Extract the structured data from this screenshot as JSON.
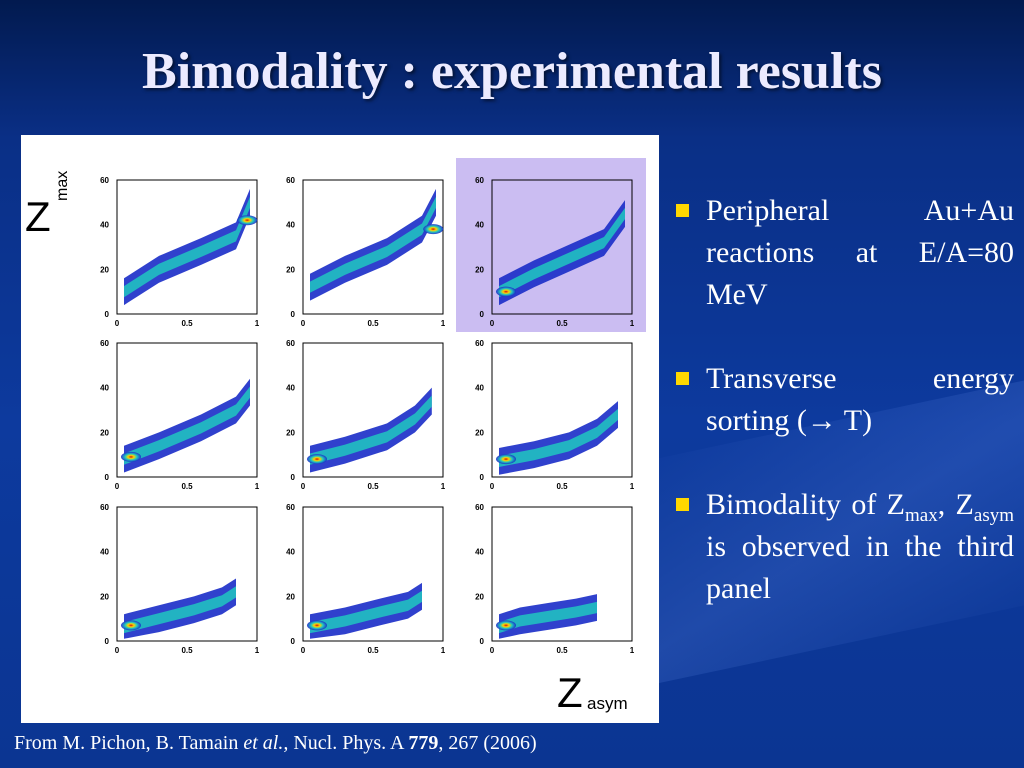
{
  "slide": {
    "title": "Bimodality : experimental results"
  },
  "figure": {
    "y_axis_symbol": "Z",
    "y_axis_subscript": "max",
    "x_axis_symbol": "Z",
    "x_axis_subscript": "asym",
    "y_ticks": [
      "0",
      "20",
      "40",
      "60"
    ],
    "x_ticks": [
      "0",
      "0.5",
      "1"
    ],
    "highlight_color": "#cbbdf2",
    "highlighted_panel": "row 1, column 3"
  },
  "chart_data": {
    "type": "heatmap",
    "description_grid": "3 x 3 grid of 2D density histograms (Zmax vs Zasym)",
    "xlim": [
      0,
      1
    ],
    "ylim": [
      0,
      60
    ],
    "panels": [
      {
        "row": 1,
        "col": 1,
        "blob": [
          [
            0.05,
            10
          ],
          [
            0.3,
            20
          ],
          [
            0.6,
            28
          ],
          [
            0.85,
            35
          ],
          [
            0.95,
            50
          ]
        ],
        "peak": [
          0.93,
          42
        ]
      },
      {
        "row": 1,
        "col": 2,
        "blob": [
          [
            0.05,
            12
          ],
          [
            0.3,
            20
          ],
          [
            0.6,
            28
          ],
          [
            0.85,
            38
          ],
          [
            0.95,
            50
          ]
        ],
        "peak": [
          0.93,
          38
        ]
      },
      {
        "row": 1,
        "col": 3,
        "blob": [
          [
            0.05,
            10
          ],
          [
            0.3,
            18
          ],
          [
            0.55,
            25
          ],
          [
            0.8,
            32
          ],
          [
            0.95,
            45
          ]
        ],
        "peak": [
          0.1,
          10
        ]
      },
      {
        "row": 2,
        "col": 1,
        "blob": [
          [
            0.05,
            8
          ],
          [
            0.3,
            14
          ],
          [
            0.6,
            22
          ],
          [
            0.85,
            30
          ],
          [
            0.95,
            38
          ]
        ],
        "peak": [
          0.1,
          9
        ]
      },
      {
        "row": 2,
        "col": 2,
        "blob": [
          [
            0.05,
            8
          ],
          [
            0.3,
            12
          ],
          [
            0.6,
            18
          ],
          [
            0.8,
            26
          ],
          [
            0.92,
            34
          ]
        ],
        "peak": [
          0.1,
          8
        ]
      },
      {
        "row": 2,
        "col": 3,
        "blob": [
          [
            0.05,
            7
          ],
          [
            0.3,
            10
          ],
          [
            0.55,
            14
          ],
          [
            0.75,
            20
          ],
          [
            0.9,
            28
          ]
        ],
        "peak": [
          0.1,
          8
        ]
      },
      {
        "row": 3,
        "col": 1,
        "blob": [
          [
            0.05,
            6
          ],
          [
            0.3,
            10
          ],
          [
            0.55,
            14
          ],
          [
            0.75,
            18
          ],
          [
            0.85,
            22
          ]
        ],
        "peak": [
          0.1,
          7
        ]
      },
      {
        "row": 3,
        "col": 2,
        "blob": [
          [
            0.05,
            6
          ],
          [
            0.3,
            9
          ],
          [
            0.55,
            13
          ],
          [
            0.75,
            16
          ],
          [
            0.85,
            20
          ]
        ],
        "peak": [
          0.1,
          7
        ]
      },
      {
        "row": 3,
        "col": 3,
        "blob": [
          [
            0.05,
            6
          ],
          [
            0.2,
            9
          ],
          [
            0.4,
            11
          ],
          [
            0.6,
            13
          ],
          [
            0.75,
            15
          ]
        ],
        "peak": [
          0.1,
          7
        ]
      }
    ]
  },
  "bullets": [
    {
      "text": "Peripheral Au+Au reactions at E/A=80 MeV"
    },
    {
      "text": "Transverse energy sorting (→ T)"
    },
    {
      "pre": "Bimodality of Z",
      "sub1": "max",
      "mid": ", Z",
      "sub2": "asym",
      "post": " is observed in the third panel"
    }
  ],
  "citation": {
    "pre": "From M. Pichon, B. Tamain ",
    "etal": "et al.,",
    "mid": " Nucl. Phys. A ",
    "volume": "779",
    "post": ", 267 (2006)"
  }
}
